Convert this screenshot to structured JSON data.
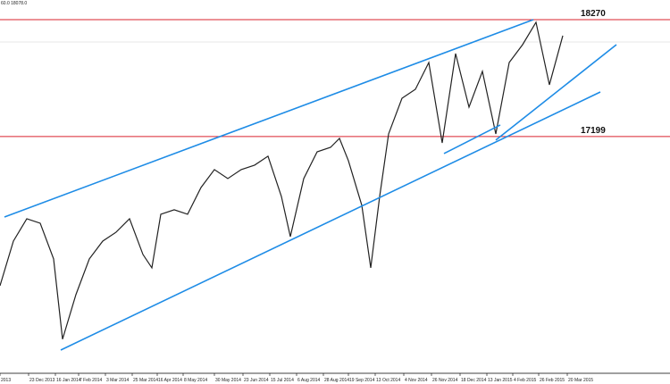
{
  "chart_data": {
    "type": "line",
    "header_text": "60.0 18078.0",
    "x": [
      0,
      15,
      30,
      45,
      60,
      70,
      85,
      100,
      115,
      130,
      145,
      160,
      170,
      180,
      195,
      210,
      225,
      240,
      255,
      270,
      285,
      300,
      315,
      325,
      340,
      355,
      370,
      380,
      390,
      405,
      415,
      425,
      435,
      450,
      465,
      480,
      495,
      510,
      525,
      540,
      555,
      570,
      585,
      600,
      615,
      630
    ],
    "series": [
      {
        "color": "#222222",
        "values": [
          15832,
          16241,
          16446,
          16405,
          16078,
          15342,
          15751,
          16078,
          16241,
          16323,
          16446,
          16119,
          15996,
          16487,
          16528,
          16487,
          16732,
          16896,
          16814,
          16896,
          16937,
          17019,
          16650,
          16282,
          16814,
          17059,
          17100,
          17182,
          16978,
          16569,
          15996,
          16650,
          17223,
          17550,
          17632,
          17877,
          17141,
          17959,
          17468,
          17796,
          17223,
          17877,
          18041,
          18246,
          17673,
          18123
        ]
      }
    ],
    "xlim": [
      0,
      750
    ],
    "ylim": [
      15030,
      18450
    ],
    "xticks": [
      {
        "value": 0,
        "label": "2013"
      },
      {
        "value": 32,
        "label": "23 Dec 2013"
      },
      {
        "value": 62,
        "label": "16 Jan 2014"
      },
      {
        "value": 88,
        "label": "7 Feb 2014"
      },
      {
        "value": 118,
        "label": "3 Mar 2014"
      },
      {
        "value": 148,
        "label": "25 Mar 2014"
      },
      {
        "value": 176,
        "label": "16 Apr 2014"
      },
      {
        "value": 205,
        "label": "8 May 2014"
      },
      {
        "value": 240,
        "label": "30 May 2014"
      },
      {
        "value": 272,
        "label": "23 Jun 2014"
      },
      {
        "value": 302,
        "label": "15 Jul 2014"
      },
      {
        "value": 332,
        "label": "6 Aug 2014"
      },
      {
        "value": 362,
        "label": "28 Aug 2014"
      },
      {
        "value": 390,
        "label": "19 Sep 2014"
      },
      {
        "value": 420,
        "label": "13 Oct 2014"
      },
      {
        "value": 452,
        "label": "4 Nov 2014"
      },
      {
        "value": 483,
        "label": "26 Nov 2014"
      },
      {
        "value": 515,
        "label": "18 Dec 2014"
      },
      {
        "value": 545,
        "label": "13 Jan 2015"
      },
      {
        "value": 574,
        "label": "4 Feb 2015"
      },
      {
        "value": 603,
        "label": "26 Feb 2015"
      },
      {
        "value": 635,
        "label": "20 Mar 2015"
      }
    ],
    "hlines": [
      18270,
      17199
    ],
    "hline_color": "#d9232e",
    "trendline_color": "#1e8ce6",
    "trendlines": [
      [
        5,
        16462,
        597,
        18270
      ],
      [
        68,
        15243,
        672,
        17607
      ],
      [
        497,
        17043,
        560,
        17305
      ],
      [
        555,
        17166,
        690,
        18041
      ]
    ]
  }
}
